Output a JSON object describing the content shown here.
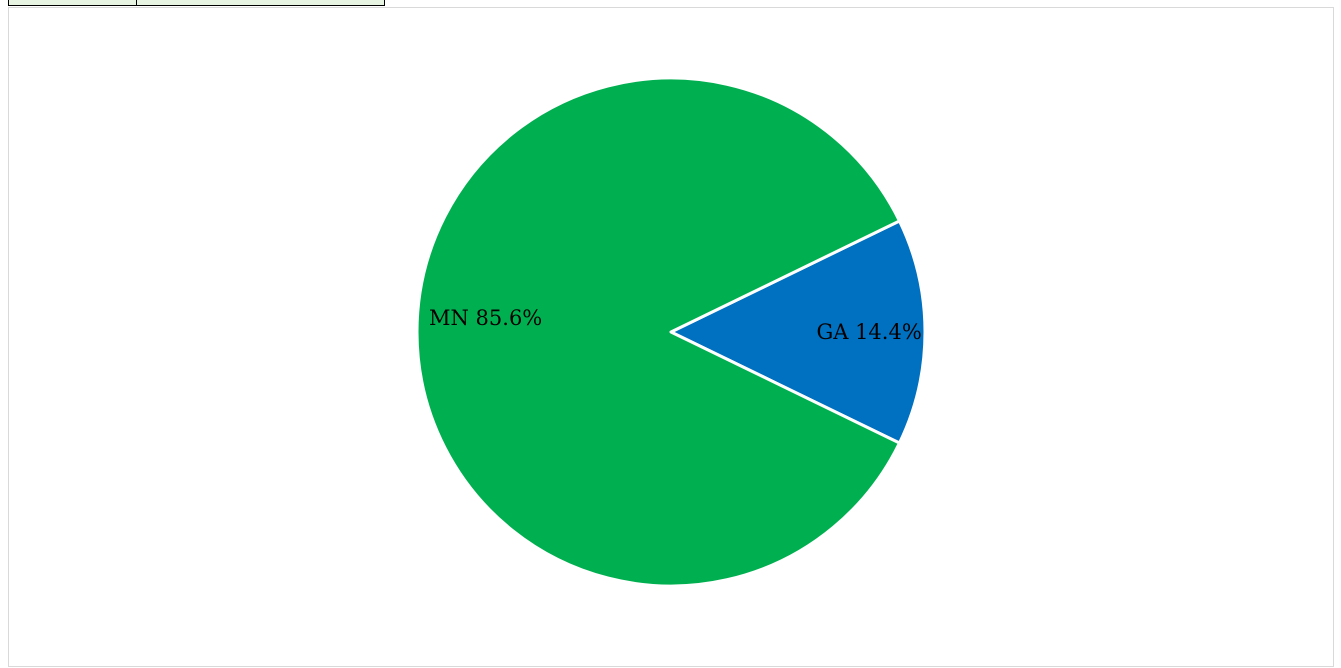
{
  "chart_data": {
    "type": "pie",
    "slices": [
      {
        "label": "MN",
        "percent_text": "85.6%",
        "value": 85.6,
        "color": "#00B050"
      },
      {
        "label": "GA",
        "percent_text": "14.4%",
        "value": 14.4,
        "color": "#0070C0"
      }
    ],
    "legend": "none",
    "slice_border_color": "#ffffff"
  }
}
